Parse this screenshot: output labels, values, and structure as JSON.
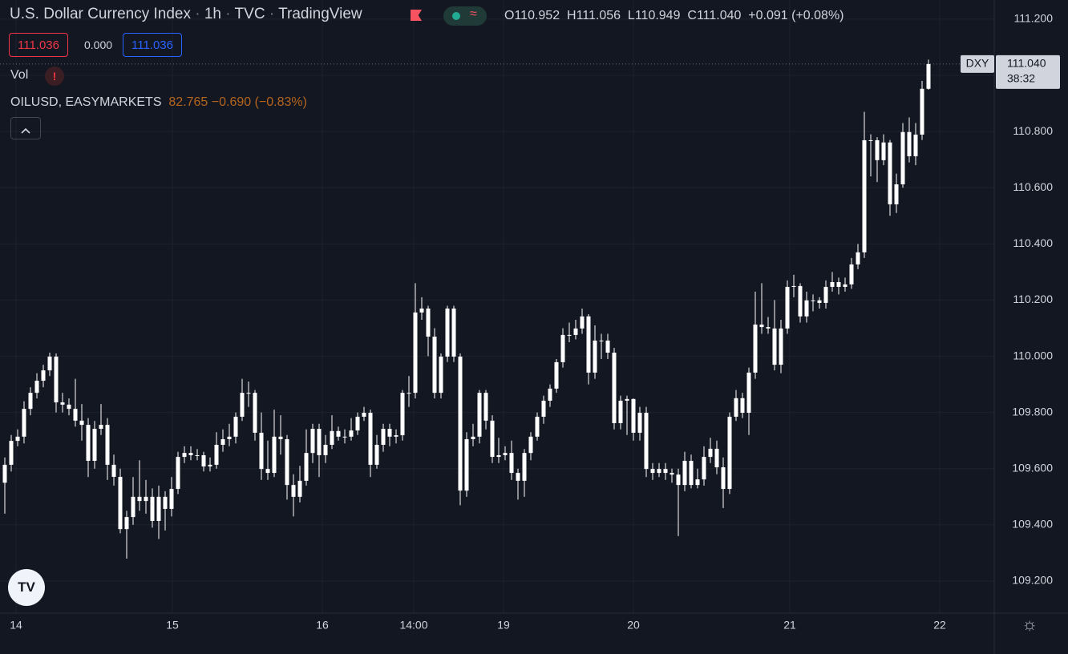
{
  "ui": {
    "symbol": "U.S. Dollar Currency Index",
    "interval": "1h",
    "exchange": "TVC",
    "source": "TradingView",
    "ohlc": [
      {
        "label": "O",
        "value": "110.952"
      },
      {
        "label": "H",
        "value": "111.056"
      },
      {
        "label": "L",
        "value": "110.949"
      },
      {
        "label": "C",
        "value": "111.040"
      }
    ],
    "change": "+0.091 (+0.08%)",
    "sell": "111.036",
    "spread": "0.000",
    "buy": "111.036",
    "volume": "Vol",
    "compare": {
      "symbol": "OILUSD, EASYMARKETS",
      "price": "82.765",
      "change": "−0.690 (−0.83%)"
    }
  },
  "chart_data": {
    "type": "candlestick",
    "color": "#ffffff",
    "grid": true,
    "price_tag": {
      "symbol": "DXY",
      "price": "111.040",
      "countdown": "38:32"
    },
    "x_labels": [
      "14",
      "15",
      "16",
      "14:00",
      "19",
      "20",
      "21",
      "22"
    ],
    "ylim": [
      109.086,
      111.268
    ],
    "yticks": [
      {
        "value": 109.2,
        "label": "109.200"
      },
      {
        "value": 109.4,
        "label": "109.400"
      },
      {
        "value": 109.6,
        "label": "109.600"
      },
      {
        "value": 109.8,
        "label": "109.800"
      },
      {
        "value": 110,
        "label": "110.000"
      },
      {
        "value": 110.2,
        "label": "110.200"
      },
      {
        "value": 110.4,
        "label": "110.400"
      },
      {
        "value": 110.6,
        "label": "110.600"
      },
      {
        "value": 110.8,
        "label": "110.800"
      },
      {
        "value": 111,
        "label": "111.000"
      },
      {
        "value": 111.2,
        "label": "111.200"
      }
    ],
    "candles": [
      [
        109.55,
        109.64,
        109.44,
        109.614
      ],
      [
        109.614,
        109.72,
        109.59,
        109.699
      ],
      [
        109.699,
        109.74,
        109.68,
        109.714
      ],
      [
        109.714,
        109.84,
        109.69,
        109.813
      ],
      [
        109.813,
        109.89,
        109.79,
        109.87
      ],
      [
        109.87,
        109.94,
        109.85,
        109.913
      ],
      [
        109.913,
        109.97,
        109.89,
        109.95
      ],
      [
        109.95,
        110.013,
        109.93,
        109.999
      ],
      [
        109.999,
        110.01,
        109.8,
        109.836
      ],
      [
        109.836,
        109.87,
        109.8,
        109.828
      ],
      [
        109.828,
        109.85,
        109.79,
        109.813
      ],
      [
        109.813,
        109.92,
        109.75,
        109.771
      ],
      [
        109.771,
        109.83,
        109.7,
        109.756
      ],
      [
        109.756,
        109.78,
        109.57,
        109.628
      ],
      [
        109.628,
        109.77,
        109.6,
        109.742
      ],
      [
        109.742,
        109.83,
        109.72,
        109.756
      ],
      [
        109.756,
        109.78,
        109.56,
        109.614
      ],
      [
        109.614,
        109.65,
        109.54,
        109.571
      ],
      [
        109.571,
        109.6,
        109.37,
        109.385
      ],
      [
        109.385,
        109.45,
        109.28,
        109.428
      ],
      [
        109.428,
        109.57,
        109.4,
        109.5
      ],
      [
        109.5,
        109.63,
        109.45,
        109.485
      ],
      [
        109.485,
        109.56,
        109.44,
        109.5
      ],
      [
        109.5,
        109.53,
        109.39,
        109.414
      ],
      [
        109.414,
        109.54,
        109.35,
        109.5
      ],
      [
        109.5,
        109.52,
        109.38,
        109.457
      ],
      [
        109.457,
        109.57,
        109.43,
        109.528
      ],
      [
        109.528,
        109.66,
        109.51,
        109.642
      ],
      [
        109.642,
        109.68,
        109.62,
        109.656
      ],
      [
        109.656,
        109.68,
        109.63,
        109.648
      ],
      [
        109.648,
        109.67,
        109.63,
        109.648
      ],
      [
        109.648,
        109.66,
        109.59,
        109.608
      ],
      [
        109.608,
        109.64,
        109.59,
        109.614
      ],
      [
        109.614,
        109.73,
        109.6,
        109.685
      ],
      [
        109.685,
        109.74,
        109.66,
        109.705
      ],
      [
        109.705,
        109.76,
        109.68,
        109.714
      ],
      [
        109.714,
        109.8,
        109.69,
        109.785
      ],
      [
        109.785,
        109.92,
        109.77,
        109.87
      ],
      [
        109.87,
        109.91,
        109.82,
        109.87
      ],
      [
        109.87,
        109.88,
        109.7,
        109.728
      ],
      [
        109.728,
        109.8,
        109.56,
        109.599
      ],
      [
        109.599,
        109.7,
        109.56,
        109.585
      ],
      [
        109.585,
        109.81,
        109.57,
        109.714
      ],
      [
        109.714,
        109.79,
        109.65,
        109.705
      ],
      [
        109.705,
        109.72,
        109.49,
        109.542
      ],
      [
        109.542,
        109.58,
        109.43,
        109.5
      ],
      [
        109.5,
        109.61,
        109.48,
        109.557
      ],
      [
        109.557,
        109.74,
        109.54,
        109.656
      ],
      [
        109.656,
        109.76,
        109.62,
        109.742
      ],
      [
        109.742,
        109.76,
        109.57,
        109.648
      ],
      [
        109.648,
        109.72,
        109.62,
        109.685
      ],
      [
        109.685,
        109.79,
        109.67,
        109.734
      ],
      [
        109.734,
        109.75,
        109.7,
        109.714
      ],
      [
        109.714,
        109.74,
        109.69,
        109.714
      ],
      [
        109.714,
        109.78,
        109.7,
        109.736
      ],
      [
        109.736,
        109.8,
        109.72,
        109.785
      ],
      [
        109.785,
        109.82,
        109.77,
        109.799
      ],
      [
        109.799,
        109.81,
        109.57,
        109.614
      ],
      [
        109.614,
        109.72,
        109.6,
        109.685
      ],
      [
        109.685,
        109.76,
        109.66,
        109.742
      ],
      [
        109.742,
        109.76,
        109.68,
        109.714
      ],
      [
        109.714,
        109.74,
        109.69,
        109.719
      ],
      [
        109.719,
        109.88,
        109.7,
        109.87
      ],
      [
        109.87,
        109.93,
        109.82,
        109.87
      ],
      [
        109.87,
        110.26,
        109.85,
        110.156
      ],
      [
        110.156,
        110.21,
        110.13,
        110.17
      ],
      [
        110.17,
        110.18,
        110.0,
        110.07
      ],
      [
        110.07,
        110.1,
        109.85,
        109.87
      ],
      [
        109.87,
        110.01,
        109.85,
        109.999
      ],
      [
        109.999,
        110.18,
        109.98,
        110.17
      ],
      [
        110.17,
        110.18,
        109.98,
        109.999
      ],
      [
        109.999,
        110.01,
        109.47,
        109.522
      ],
      [
        109.522,
        109.73,
        109.5,
        109.705
      ],
      [
        109.705,
        109.76,
        109.68,
        109.714
      ],
      [
        109.714,
        109.88,
        109.69,
        109.87
      ],
      [
        109.87,
        109.88,
        109.74,
        109.771
      ],
      [
        109.771,
        109.79,
        109.62,
        109.642
      ],
      [
        109.642,
        109.71,
        109.62,
        109.648
      ],
      [
        109.648,
        109.68,
        109.63,
        109.656
      ],
      [
        109.656,
        109.7,
        109.56,
        109.585
      ],
      [
        109.585,
        109.6,
        109.49,
        109.557
      ],
      [
        109.557,
        109.67,
        109.5,
        109.656
      ],
      [
        109.656,
        109.73,
        109.63,
        109.714
      ],
      [
        109.714,
        109.8,
        109.7,
        109.785
      ],
      [
        109.785,
        109.86,
        109.76,
        109.842
      ],
      [
        109.842,
        109.9,
        109.82,
        109.885
      ],
      [
        109.885,
        109.99,
        109.87,
        109.979
      ],
      [
        109.979,
        110.1,
        109.96,
        110.076
      ],
      [
        110.076,
        110.12,
        110.05,
        110.076
      ],
      [
        110.076,
        110.13,
        110.06,
        110.099
      ],
      [
        110.099,
        110.17,
        110.08,
        110.142
      ],
      [
        110.142,
        110.15,
        109.9,
        109.942
      ],
      [
        109.942,
        110.11,
        109.92,
        110.056
      ],
      [
        110.056,
        110.08,
        109.99,
        110.056
      ],
      [
        110.056,
        110.08,
        109.99,
        110.013
      ],
      [
        110.013,
        110.03,
        109.74,
        109.762
      ],
      [
        109.762,
        109.86,
        109.74,
        109.842
      ],
      [
        109.842,
        109.86,
        109.72,
        109.848
      ],
      [
        109.848,
        109.85,
        109.7,
        109.728
      ],
      [
        109.728,
        109.82,
        109.7,
        109.799
      ],
      [
        109.799,
        109.82,
        109.57,
        109.599
      ],
      [
        109.599,
        109.62,
        109.56,
        109.585
      ],
      [
        109.585,
        109.62,
        109.57,
        109.599
      ],
      [
        109.599,
        109.62,
        109.56,
        109.585
      ],
      [
        109.585,
        109.6,
        109.55,
        109.579
      ],
      [
        109.579,
        109.6,
        109.36,
        109.542
      ],
      [
        109.542,
        109.66,
        109.52,
        109.628
      ],
      [
        109.628,
        109.65,
        109.53,
        109.542
      ],
      [
        109.542,
        109.6,
        109.53,
        109.562
      ],
      [
        109.562,
        109.68,
        109.54,
        109.642
      ],
      [
        109.642,
        109.71,
        109.62,
        109.671
      ],
      [
        109.671,
        109.7,
        109.58,
        109.605
      ],
      [
        109.605,
        109.64,
        109.46,
        109.528
      ],
      [
        109.528,
        109.8,
        109.51,
        109.785
      ],
      [
        109.785,
        109.88,
        109.77,
        109.851
      ],
      [
        109.851,
        109.87,
        109.78,
        109.799
      ],
      [
        109.799,
        109.96,
        109.72,
        109.942
      ],
      [
        109.942,
        110.23,
        109.92,
        110.113
      ],
      [
        110.113,
        110.26,
        110.08,
        110.104
      ],
      [
        110.104,
        110.14,
        110.08,
        110.099
      ],
      [
        110.099,
        110.2,
        109.95,
        109.97
      ],
      [
        109.97,
        110.13,
        109.94,
        110.099
      ],
      [
        110.099,
        110.27,
        110.08,
        110.247
      ],
      [
        110.247,
        110.29,
        110.21,
        110.25
      ],
      [
        110.25,
        110.26,
        110.12,
        110.142
      ],
      [
        110.142,
        110.23,
        110.12,
        110.199
      ],
      [
        110.199,
        110.22,
        110.16,
        110.199
      ],
      [
        110.199,
        110.21,
        110.17,
        110.19
      ],
      [
        110.19,
        110.27,
        110.17,
        110.247
      ],
      [
        110.247,
        110.3,
        110.23,
        110.264
      ],
      [
        110.264,
        110.28,
        110.22,
        110.247
      ],
      [
        110.247,
        110.28,
        110.23,
        110.256
      ],
      [
        110.256,
        110.35,
        110.24,
        110.327
      ],
      [
        110.327,
        110.4,
        110.31,
        110.37
      ],
      [
        110.37,
        110.87,
        110.35,
        110.769
      ],
      [
        110.769,
        110.79,
        110.64,
        110.769
      ],
      [
        110.769,
        110.78,
        110.62,
        110.698
      ],
      [
        110.698,
        110.79,
        110.68,
        110.761
      ],
      [
        110.761,
        110.77,
        110.5,
        110.541
      ],
      [
        110.541,
        110.65,
        110.51,
        110.612
      ],
      [
        110.612,
        110.83,
        110.6,
        110.798
      ],
      [
        110.798,
        110.85,
        110.69,
        110.712
      ],
      [
        110.712,
        110.83,
        110.68,
        110.789
      ],
      [
        110.789,
        110.98,
        110.77,
        110.952
      ],
      [
        110.952,
        111.056,
        110.949,
        111.04
      ]
    ]
  }
}
